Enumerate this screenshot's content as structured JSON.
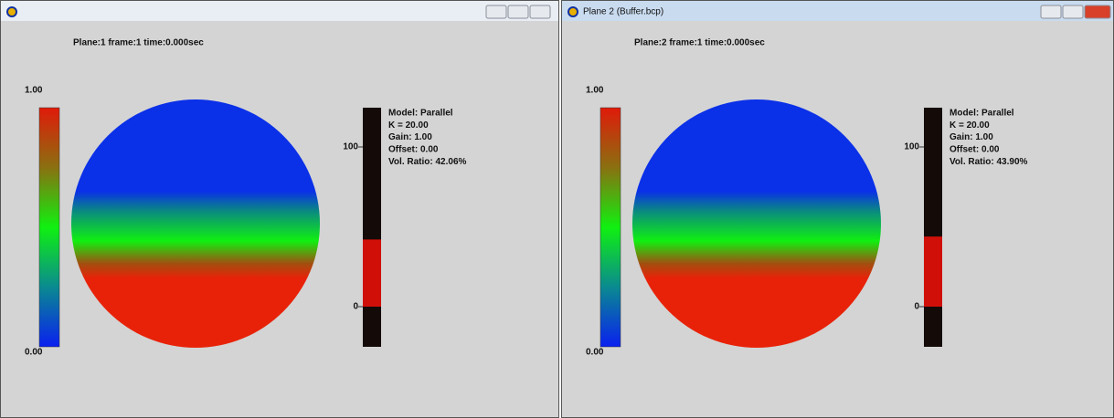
{
  "windows": [
    {
      "header": "Plane:1  frame:1  time:0.000sec",
      "colorbar": {
        "max": "1.00",
        "min": "0.00"
      },
      "volume_bar": {
        "ticks": [
          100,
          0
        ]
      },
      "info": [
        "Model: Parallel",
        "K = 20.00",
        "Gain: 1.00",
        "Offset: 0.00"
      ],
      "vol_ratio": {
        "value": 42.06,
        "label": "Vol. Ratio: 42.06%"
      }
    },
    {
      "title": "Plane 2 (Buffer.bcp)",
      "header": "Plane:2  frame:1  time:0.000sec",
      "colorbar": {
        "max": "1.00",
        "min": "0.00"
      },
      "volume_bar": {
        "ticks": [
          100,
          0
        ]
      },
      "info": [
        "Model: Parallel",
        "K = 20.00",
        "Gain: 1.00",
        "Offset: 0.00"
      ],
      "vol_ratio": {
        "value": 43.9,
        "label": "Vol. Ratio: 43.90%"
      }
    }
  ]
}
